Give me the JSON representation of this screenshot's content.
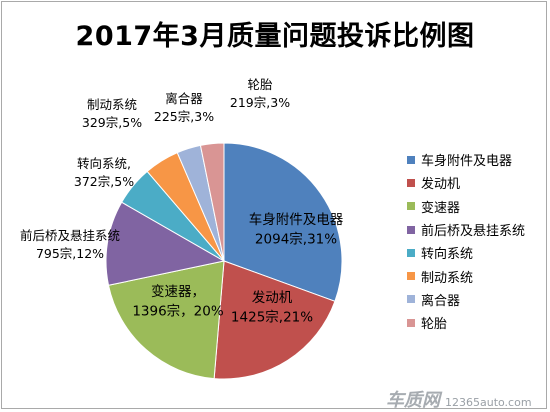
{
  "chart_data": {
    "type": "pie",
    "title": "2017年3月质量问题投诉比例图",
    "unit": "宗",
    "legend_position": "right",
    "slices": [
      {
        "name": "车身附件及电器",
        "count": 2094,
        "percent": 31,
        "label": "2094宗,31%",
        "color": "#4f81bd"
      },
      {
        "name": "发动机",
        "count": 1425,
        "percent": 21,
        "label": "1425宗,21%",
        "color": "#c0504d"
      },
      {
        "name": "变速器",
        "count": 1396,
        "percent": 20,
        "label": "1396宗，20%",
        "color": "#9bbb59"
      },
      {
        "name": "前后桥及悬挂系统",
        "count": 795,
        "percent": 12,
        "label": "795宗,12%",
        "color": "#8064a2"
      },
      {
        "name": "转向系统",
        "count": 372,
        "percent": 5,
        "label": "372宗,5%",
        "color": "#4bacc6"
      },
      {
        "name": "制动系统",
        "count": 329,
        "percent": 5,
        "label": "329宗,5%",
        "color": "#f79646"
      },
      {
        "name": "离合器",
        "count": 225,
        "percent": 3,
        "label": "225宗,3%",
        "color": "#9fb3d9"
      },
      {
        "name": "轮胎",
        "count": 219,
        "percent": 3,
        "label": "219宗,3%",
        "color": "#d99594"
      }
    ]
  },
  "slice_label_names": [
    "车身附件及电器",
    "发动机",
    "变速器，",
    "前后桥及悬挂系统",
    "转向系统,",
    "制动系统",
    "离合器",
    "轮胎"
  ],
  "watermark": {
    "logo": "车质网",
    "url": "12365auto.com"
  }
}
